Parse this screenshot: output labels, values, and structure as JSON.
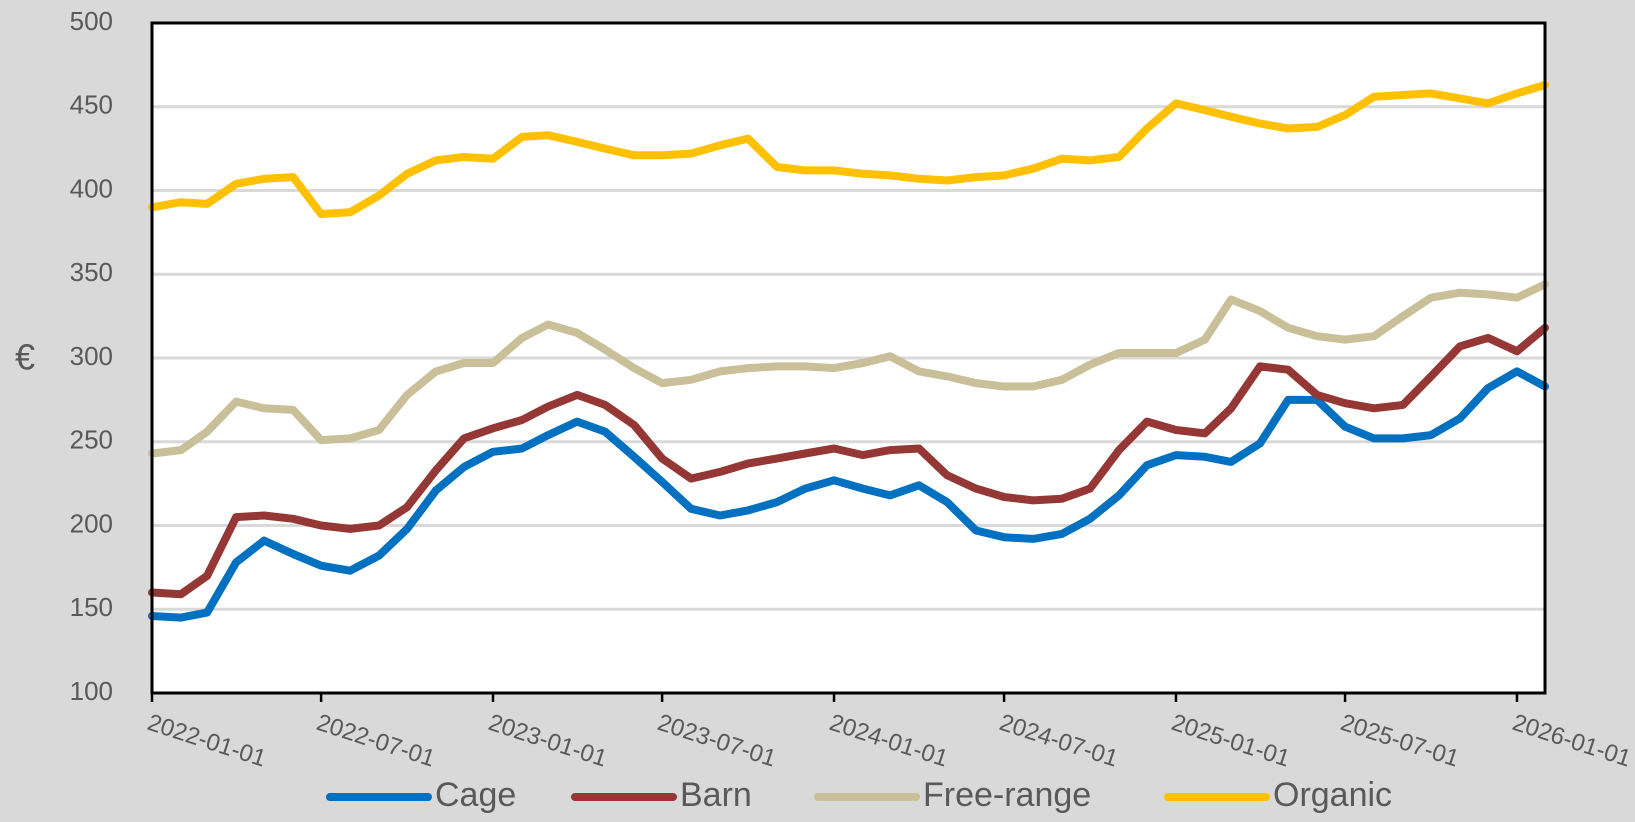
{
  "chart_data": {
    "type": "line",
    "title": "",
    "xlabel": "",
    "ylabel": "€",
    "ylim": [
      100,
      500
    ],
    "yticks": [
      100,
      150,
      200,
      250,
      300,
      350,
      400,
      450,
      500
    ],
    "xlim": [
      "2022-01-01",
      "2026-01-31"
    ],
    "xticks": [
      "2022-01-01",
      "2022-07-01",
      "2023-01-01",
      "2023-07-01",
      "2024-01-01",
      "2024-07-01",
      "2025-01-01",
      "2025-07-01",
      "2026-01-01"
    ],
    "grid": "horizontal",
    "legend": "bottom",
    "x": [
      "2022-01-01",
      "2022-02-01",
      "2022-03-01",
      "2022-04-01",
      "2022-05-01",
      "2022-06-01",
      "2022-07-01",
      "2022-08-01",
      "2022-09-01",
      "2022-10-01",
      "2022-11-01",
      "2022-12-01",
      "2023-01-01",
      "2023-02-01",
      "2023-03-01",
      "2023-04-01",
      "2023-05-01",
      "2023-06-01",
      "2023-07-01",
      "2023-08-01",
      "2023-09-01",
      "2023-10-01",
      "2023-11-01",
      "2023-12-01",
      "2024-01-01",
      "2024-02-01",
      "2024-03-01",
      "2024-04-01",
      "2024-05-01",
      "2024-06-01",
      "2024-07-01",
      "2024-08-01",
      "2024-09-01",
      "2024-10-01",
      "2024-11-01",
      "2024-12-01",
      "2025-01-01",
      "2025-02-01",
      "2025-03-01",
      "2025-04-01",
      "2025-05-01",
      "2025-06-01",
      "2025-07-01",
      "2025-08-01",
      "2025-09-01",
      "2025-10-01",
      "2025-11-01",
      "2025-12-01",
      "2026-01-01",
      "2026-01-31"
    ],
    "series": [
      {
        "name": "Cage",
        "color": "#0070c0",
        "values": [
          146,
          145,
          148,
          178,
          191,
          183,
          176,
          173,
          182,
          198,
          221,
          235,
          244,
          246,
          254,
          262,
          256,
          241,
          226,
          210,
          206,
          209,
          214,
          222,
          227,
          222,
          218,
          224,
          214,
          197,
          193,
          192,
          195,
          204,
          218,
          236,
          242,
          241,
          238,
          249,
          275,
          275,
          259,
          252,
          252,
          254,
          264,
          282,
          292,
          283
        ]
      },
      {
        "name": "Barn",
        "color": "#953735",
        "values": [
          160,
          159,
          170,
          205,
          206,
          204,
          200,
          198,
          200,
          211,
          233,
          252,
          258,
          263,
          271,
          278,
          272,
          260,
          240,
          228,
          232,
          237,
          240,
          243,
          246,
          242,
          245,
          246,
          230,
          222,
          217,
          215,
          216,
          222,
          245,
          262,
          257,
          255,
          270,
          295,
          293,
          278,
          273,
          270,
          272,
          289,
          307,
          312,
          304,
          318
        ]
      },
      {
        "name": "Free-range",
        "color": "#c9bf98",
        "values": [
          243,
          245,
          256,
          274,
          270,
          269,
          251,
          252,
          257,
          278,
          292,
          297,
          297,
          312,
          320,
          315,
          305,
          294,
          285,
          287,
          292,
          294,
          295,
          295,
          294,
          297,
          301,
          292,
          289,
          285,
          283,
          283,
          287,
          296,
          303,
          303,
          303,
          311,
          335,
          328,
          318,
          313,
          311,
          313,
          325,
          336,
          339,
          338,
          336,
          344
        ]
      },
      {
        "name": "Organic",
        "color": "#ffc000",
        "values": [
          390,
          393,
          392,
          404,
          407,
          408,
          386,
          387,
          397,
          410,
          418,
          420,
          419,
          432,
          433,
          429,
          425,
          421,
          421,
          422,
          427,
          431,
          414,
          412,
          412,
          410,
          409,
          407,
          406,
          408,
          409,
          413,
          419,
          418,
          420,
          437,
          452,
          448,
          444,
          440,
          437,
          438,
          445,
          456,
          457,
          458,
          455,
          452,
          458,
          463
        ]
      }
    ]
  }
}
